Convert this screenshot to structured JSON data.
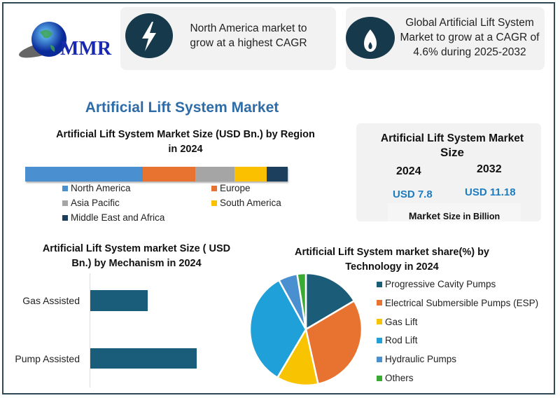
{
  "logo": {
    "text": "MMR"
  },
  "cards": [
    {
      "icon": "lightning-icon",
      "text": "North America market to grow at a highest CAGR"
    },
    {
      "icon": "flame-icon",
      "text": "Global Artificial Lift System Market to grow at a CAGR of 4.6% during 2025-2032"
    }
  ],
  "main_title": "Artificial Lift System Market",
  "market_size": {
    "title": "Artificial Lift System Market",
    "title2": "Size",
    "years": [
      "2024",
      "2032"
    ],
    "values": [
      "USD 7.8",
      "USD 11.18"
    ],
    "footer_a": "Market",
    "footer_b": "Size in Billion"
  },
  "chart_data": [
    {
      "type": "bar",
      "orientation": "stacked-horizontal",
      "title": "Artificial Lift System Market Size (USD Bn.) by Region in 2024",
      "categories": [
        "North America",
        "Europe",
        "Asia Pacific",
        "South America",
        "Middle East and Africa"
      ],
      "values_share_percent": [
        44.8,
        20,
        15,
        12.2,
        8
      ],
      "colors": [
        "#4a90d0",
        "#e8722f",
        "#a5a5a5",
        "#fbc000",
        "#1c3f5e"
      ],
      "legend": "bottom"
    },
    {
      "type": "bar",
      "orientation": "horizontal",
      "title": "Artificial Lift System  market Size ( USD Bn.) by Mechanism in 2024",
      "categories": [
        "Gas Assisted",
        "Pump Assisted"
      ],
      "values": [
        2.73,
        5.07
      ],
      "color": "#1a5d7a"
    },
    {
      "type": "pie",
      "title": "Artificial Lift System  market share(%)  by Technology in 2024",
      "categories": [
        "Progressive Cavity Pumps",
        "Electrical Submersible Pumps (ESP)",
        "Gas Lift",
        "Rod Lift",
        "Hydraulic Pumps",
        "Others"
      ],
      "values": [
        16.5,
        30,
        12,
        33.5,
        5.5,
        2.5
      ],
      "colors": [
        "#1b5c78",
        "#e8722f",
        "#f8c300",
        "#1fa0d8",
        "#4a90d0",
        "#3aaa35"
      ],
      "legend": "right"
    }
  ]
}
